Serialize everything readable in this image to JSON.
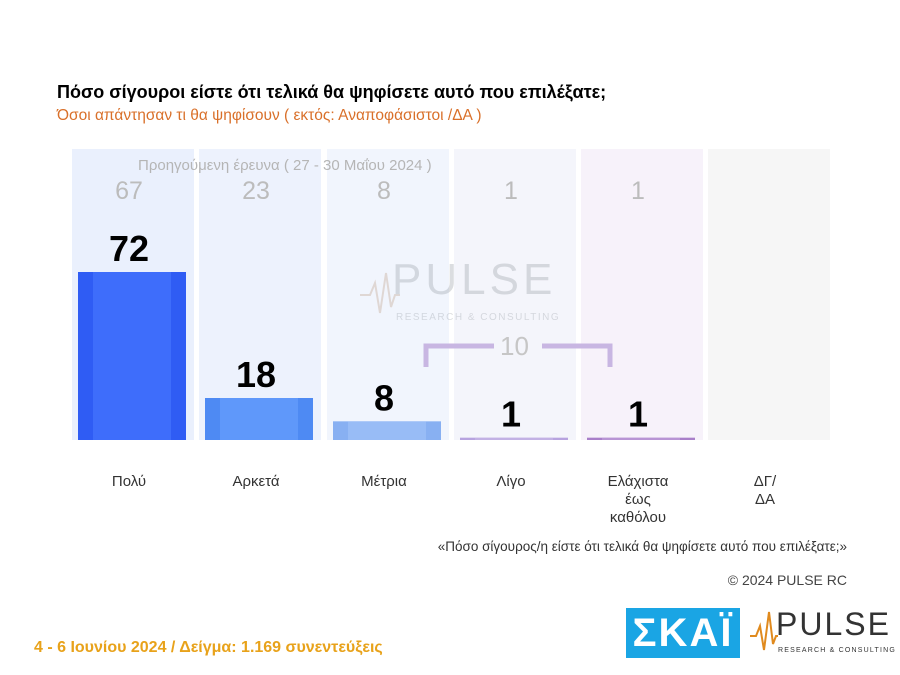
{
  "chart_data": {
    "type": "bar",
    "title": "Πόσο σίγουροι είστε ότι τελικά θα ψηφίσετε αυτό που επιλέξατε;",
    "subtitle": "Όσοι απάντησαν τι θα ψηφίσουν ( εκτός: Αναποφάσιστοι /ΔΑ )",
    "categories": [
      "Πολύ",
      "Αρκετά",
      "Μέτρια",
      "Λίγο",
      "Ελάχιστα έως καθόλου",
      "ΔΓ/ ΔΑ"
    ],
    "category_lines": [
      [
        "Πολύ"
      ],
      [
        "Αρκετά"
      ],
      [
        "Μέτρια"
      ],
      [
        "Λίγο"
      ],
      [
        "Ελάχιστα",
        "έως",
        "καθόλου"
      ],
      [
        "ΔΓ/",
        "ΔΑ"
      ]
    ],
    "values": [
      72,
      18,
      8,
      1,
      1,
      null
    ],
    "value_labels": [
      "72",
      "18",
      "8",
      "1",
      "1",
      ""
    ],
    "previous_values": [
      67,
      23,
      8,
      1,
      1,
      null
    ],
    "previous_labels": [
      "67",
      "23",
      "8",
      "1",
      "1",
      ""
    ],
    "previous_label": "Προηγούμενη έρευνα  ( 27 - 30 Μαΐου 2024 )",
    "grouped_label": "10",
    "ylim": [
      0,
      100
    ],
    "grid": false,
    "colors": {
      "bar_colors": [
        "#2f5cf4",
        "#4e8af3",
        "#88b0f2",
        "#b7a3df",
        "#a97fc9",
        "#e6e6e6"
      ],
      "bar_highlight": [
        "#4a78ff",
        "#6aa1ff",
        "#a4c4f8",
        "#cabbe8",
        "#c3a2dc",
        "#eeeeee"
      ],
      "column_bg": [
        "#eaf0fd",
        "#edf2fd",
        "#f1f5fd",
        "#f4f5fb",
        "#f7f2fa",
        "#f6f6f6"
      ],
      "bracket": "#c8b6e2"
    }
  },
  "watermark": {
    "name": "PULSE",
    "tagline": "RESEARCH & CONSULTING"
  },
  "question_quote": "«Πόσο σίγουρος/η είστε ότι τελικά θα ψηφίσετε αυτό που επιλέξατε;»",
  "copyright": "© 2024 PULSE RC",
  "footer": "4 - 6  Ιουνίου 2024  /  Δείγμα:  1.169 συνεντεύξεις",
  "logos": {
    "skai": "ΣΚΑΪ",
    "pulse_name": "PULSE",
    "pulse_tagline": "RESEARCH & CONSULTING"
  }
}
